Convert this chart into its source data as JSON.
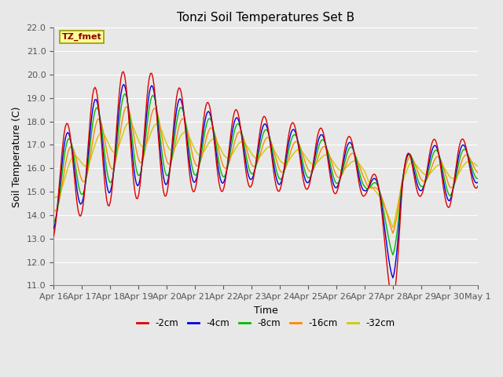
{
  "title": "Tonzi Soil Temperatures Set B",
  "xlabel": "Time",
  "ylabel": "Soil Temperature (C)",
  "ylim": [
    11.0,
    22.0
  ],
  "yticks": [
    11.0,
    12.0,
    13.0,
    14.0,
    15.0,
    16.0,
    17.0,
    18.0,
    19.0,
    20.0,
    21.0,
    22.0
  ],
  "background_color": "#e8e8e8",
  "plot_bg_color": "#e8e8e8",
  "grid_color": "#ffffff",
  "line_colors": {
    "-2cm": "#dd0000",
    "-4cm": "#0000dd",
    "-8cm": "#00bb00",
    "-16cm": "#ff8800",
    "-32cm": "#cccc00"
  },
  "legend_labels": [
    "-2cm",
    "-4cm",
    "-8cm",
    "-16cm",
    "-32cm"
  ],
  "annotation_text": "TZ_fmet",
  "annotation_bg": "#ffff99",
  "annotation_border": "#999900",
  "x_tick_labels": [
    "Apr 16",
    "Apr 17",
    "Apr 18",
    "Apr 19",
    "Apr 20",
    "Apr 21",
    "Apr 22",
    "Apr 23",
    "Apr 24",
    "Apr 25",
    "Apr 26",
    "Apr 27",
    "Apr 28",
    "Apr 29",
    "Apr 30",
    "May 1"
  ],
  "n_points": 360
}
